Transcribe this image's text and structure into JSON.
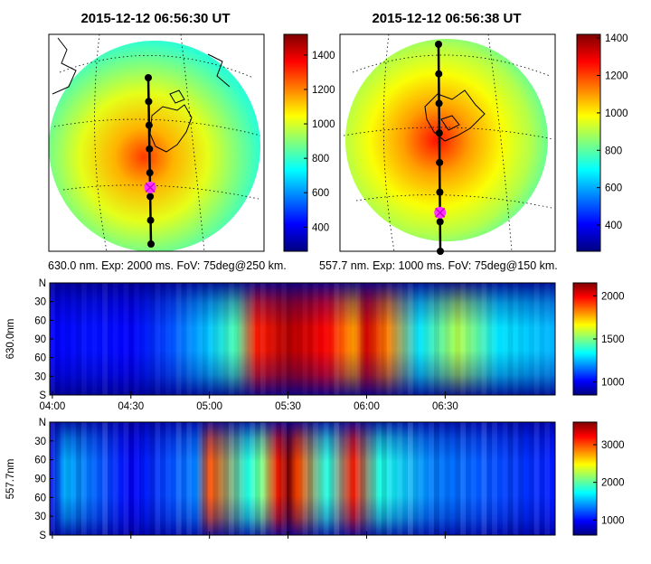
{
  "panels": {
    "left_title": "2015-12-12 06:56:30 UT",
    "right_title": "2015-12-12 06:56:38 UT",
    "left_caption": "630.0 nm. Exp: 2000 ms. FoV: 75deg@250 km.",
    "right_caption": "557.7 nm. Exp: 1000 ms. FoV: 75deg@150 km."
  },
  "colors": {
    "colormap": [
      "#00007f",
      "#0000ff",
      "#007fff",
      "#00ffff",
      "#7fff7f",
      "#ffff00",
      "#ff7f00",
      "#ff0000",
      "#7f0000"
    ],
    "track": "#000000",
    "marker": "#ff33ff"
  },
  "chart_data": [
    {
      "type": "heatmap",
      "name": "all-sky image 630.0 nm",
      "title": "2015-12-12 06:56:30 UT",
      "caption": "630.0 nm. Exp: 2000 ms. FoV: 75deg@250 km.",
      "colorbar": {
        "ticks": [
          400,
          600,
          800,
          1000,
          1200,
          1400
        ],
        "range": [
          260,
          1520
        ]
      },
      "track_points": 8,
      "footprint_index": 5
    },
    {
      "type": "heatmap",
      "name": "all-sky image 557.7 nm",
      "title": "2015-12-12 06:56:38 UT",
      "caption": "557.7 nm. Exp: 1000 ms. FoV: 75deg@150 km.",
      "colorbar": {
        "ticks": [
          400,
          600,
          800,
          1000,
          1200,
          1400
        ],
        "range": [
          260,
          1420
        ]
      },
      "track_points": 8,
      "footprint_index": 6
    },
    {
      "type": "heatmap",
      "name": "keogram 630.0 nm",
      "ylabel": "630.0nm",
      "y_ticks": [
        "N",
        "30",
        "60",
        "90",
        "60",
        "30",
        "S"
      ],
      "x_ticks": [
        "04:00",
        "04:30",
        "05:00",
        "05:30",
        "06:00",
        "06:30"
      ],
      "x_range": [
        "03:59",
        "07:12"
      ],
      "colorbar": {
        "ticks": [
          1000,
          1500,
          2000
        ],
        "range": [
          850,
          2150
        ]
      },
      "intensity_profile": [
        {
          "t": "03:59",
          "v": 0.12
        },
        {
          "t": "04:15",
          "v": 0.14
        },
        {
          "t": "04:30",
          "v": 0.12
        },
        {
          "t": "04:45",
          "v": 0.2
        },
        {
          "t": "05:00",
          "v": 0.32
        },
        {
          "t": "05:10",
          "v": 0.45
        },
        {
          "t": "05:18",
          "v": 0.85
        },
        {
          "t": "05:30",
          "v": 0.95
        },
        {
          "t": "05:45",
          "v": 0.88
        },
        {
          "t": "05:55",
          "v": 0.72
        },
        {
          "t": "06:00",
          "v": 0.92
        },
        {
          "t": "06:08",
          "v": 0.75
        },
        {
          "t": "06:20",
          "v": 0.35
        },
        {
          "t": "06:35",
          "v": 0.55
        },
        {
          "t": "06:50",
          "v": 0.35
        },
        {
          "t": "07:12",
          "v": 0.3
        }
      ]
    },
    {
      "type": "heatmap",
      "name": "keogram 557.7 nm",
      "ylabel": "557.7nm",
      "y_ticks": [
        "N",
        "30",
        "60",
        "90",
        "60",
        "30",
        "S"
      ],
      "x_range": [
        "03:59",
        "07:12"
      ],
      "colorbar": {
        "ticks": [
          1000,
          2000,
          3000
        ],
        "range": [
          600,
          3600
        ]
      },
      "intensity_profile": [
        {
          "t": "03:59",
          "v": 0.1
        },
        {
          "t": "04:05",
          "v": 0.3
        },
        {
          "t": "04:30",
          "v": 0.12
        },
        {
          "t": "04:55",
          "v": 0.25
        },
        {
          "t": "05:00",
          "v": 0.8
        },
        {
          "t": "05:15",
          "v": 0.4
        },
        {
          "t": "05:20",
          "v": 0.5
        },
        {
          "t": "05:26",
          "v": 0.85
        },
        {
          "t": "05:30",
          "v": 1.0
        },
        {
          "t": "05:34",
          "v": 0.8
        },
        {
          "t": "05:45",
          "v": 0.4
        },
        {
          "t": "05:55",
          "v": 0.85
        },
        {
          "t": "06:05",
          "v": 0.4
        },
        {
          "t": "06:25",
          "v": 0.25
        },
        {
          "t": "07:12",
          "v": 0.15
        }
      ]
    }
  ]
}
